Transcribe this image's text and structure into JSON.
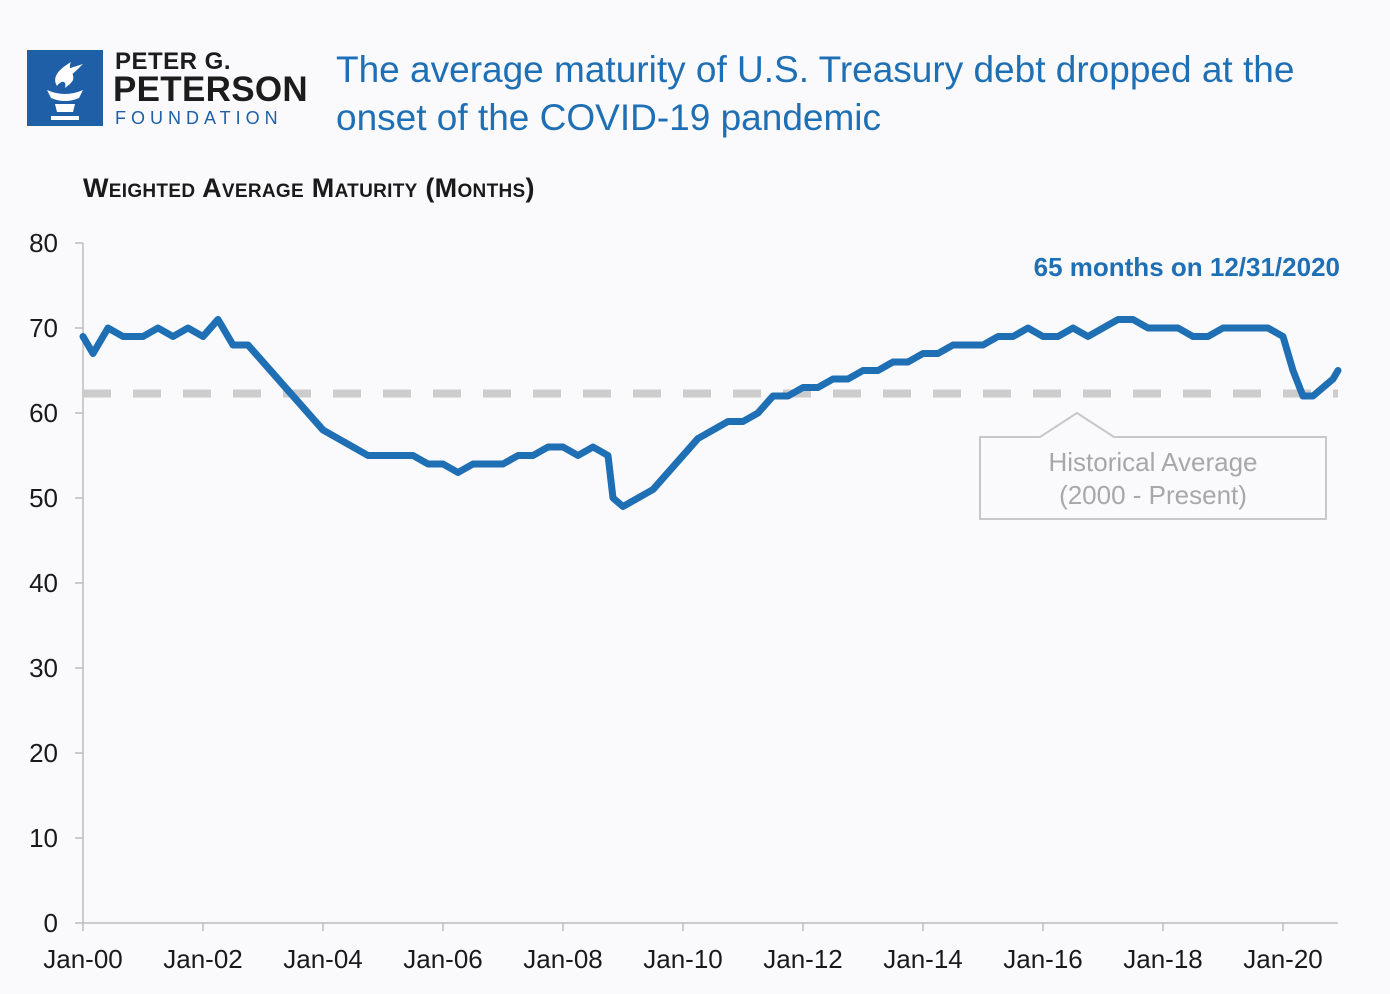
{
  "logo": {
    "line1": "PETER G.",
    "line2": "PETERSON",
    "line3": "FOUNDATION",
    "color": "#1f5fa8"
  },
  "title": "The average maturity of U.S. Treasury debt dropped at the onset of the COVID-19 pandemic",
  "chart_data": {
    "type": "line",
    "ylabel": "Weighted Average Maturity (Months)",
    "ylim": [
      0,
      80
    ],
    "yticks": [
      "0",
      "10",
      "20",
      "30",
      "40",
      "50",
      "60",
      "70",
      "80"
    ],
    "xticks": [
      "Jan-00",
      "Jan-02",
      "Jan-04",
      "Jan-06",
      "Jan-08",
      "Jan-10",
      "Jan-12",
      "Jan-14",
      "Jan-16",
      "Jan-18",
      "Jan-20"
    ],
    "xlim": [
      "2000-01",
      "2020-12"
    ],
    "grid": false,
    "colors": {
      "line": "#1f6fb5",
      "reference": "#cccccc",
      "annotation": "#1f6fb5"
    },
    "series": [
      {
        "values": [
          [
            "2000-01",
            69
          ],
          [
            "2000-03",
            67
          ],
          [
            "2000-06",
            70
          ],
          [
            "2000-09",
            69
          ],
          [
            "2001-01",
            69
          ],
          [
            "2001-04",
            70
          ],
          [
            "2001-07",
            69
          ],
          [
            "2001-10",
            70
          ],
          [
            "2002-01",
            69
          ],
          [
            "2002-04",
            71
          ],
          [
            "2002-07",
            68
          ],
          [
            "2002-10",
            68
          ],
          [
            "2003-01",
            66
          ],
          [
            "2003-04",
            64
          ],
          [
            "2003-07",
            62
          ],
          [
            "2003-10",
            60
          ],
          [
            "2004-01",
            58
          ],
          [
            "2004-04",
            57
          ],
          [
            "2004-07",
            56
          ],
          [
            "2004-10",
            55
          ],
          [
            "2005-01",
            55
          ],
          [
            "2005-04",
            55
          ],
          [
            "2005-07",
            55
          ],
          [
            "2005-10",
            54
          ],
          [
            "2006-01",
            54
          ],
          [
            "2006-04",
            53
          ],
          [
            "2006-07",
            54
          ],
          [
            "2006-10",
            54
          ],
          [
            "2007-01",
            54
          ],
          [
            "2007-04",
            55
          ],
          [
            "2007-07",
            55
          ],
          [
            "2007-10",
            56
          ],
          [
            "2008-01",
            56
          ],
          [
            "2008-04",
            55
          ],
          [
            "2008-07",
            56
          ],
          [
            "2008-10",
            55
          ],
          [
            "2008-11",
            50
          ],
          [
            "2009-01",
            49
          ],
          [
            "2009-04",
            50
          ],
          [
            "2009-07",
            51
          ],
          [
            "2009-10",
            53
          ],
          [
            "2010-01",
            55
          ],
          [
            "2010-04",
            57
          ],
          [
            "2010-07",
            58
          ],
          [
            "2010-10",
            59
          ],
          [
            "2011-01",
            59
          ],
          [
            "2011-04",
            60
          ],
          [
            "2011-07",
            62
          ],
          [
            "2011-10",
            62
          ],
          [
            "2012-01",
            63
          ],
          [
            "2012-04",
            63
          ],
          [
            "2012-07",
            64
          ],
          [
            "2012-10",
            64
          ],
          [
            "2013-01",
            65
          ],
          [
            "2013-04",
            65
          ],
          [
            "2013-07",
            66
          ],
          [
            "2013-10",
            66
          ],
          [
            "2014-01",
            67
          ],
          [
            "2014-04",
            67
          ],
          [
            "2014-07",
            68
          ],
          [
            "2014-10",
            68
          ],
          [
            "2015-01",
            68
          ],
          [
            "2015-04",
            69
          ],
          [
            "2015-07",
            69
          ],
          [
            "2015-10",
            70
          ],
          [
            "2016-01",
            69
          ],
          [
            "2016-04",
            69
          ],
          [
            "2016-07",
            70
          ],
          [
            "2016-10",
            69
          ],
          [
            "2017-01",
            70
          ],
          [
            "2017-04",
            71
          ],
          [
            "2017-07",
            71
          ],
          [
            "2017-10",
            70
          ],
          [
            "2018-01",
            70
          ],
          [
            "2018-04",
            70
          ],
          [
            "2018-07",
            69
          ],
          [
            "2018-10",
            69
          ],
          [
            "2019-01",
            70
          ],
          [
            "2019-04",
            70
          ],
          [
            "2019-07",
            70
          ],
          [
            "2019-10",
            70
          ],
          [
            "2020-01",
            69
          ],
          [
            "2020-03",
            65
          ],
          [
            "2020-05",
            62
          ],
          [
            "2020-07",
            62
          ],
          [
            "2020-09",
            63
          ],
          [
            "2020-11",
            64
          ],
          [
            "2020-12",
            65
          ]
        ]
      }
    ],
    "reference_line": {
      "value": 62.3,
      "label_line1": "Historical Average",
      "label_line2": "(2000 - Present)"
    },
    "annotation": "65 months on 12/31/2020"
  }
}
